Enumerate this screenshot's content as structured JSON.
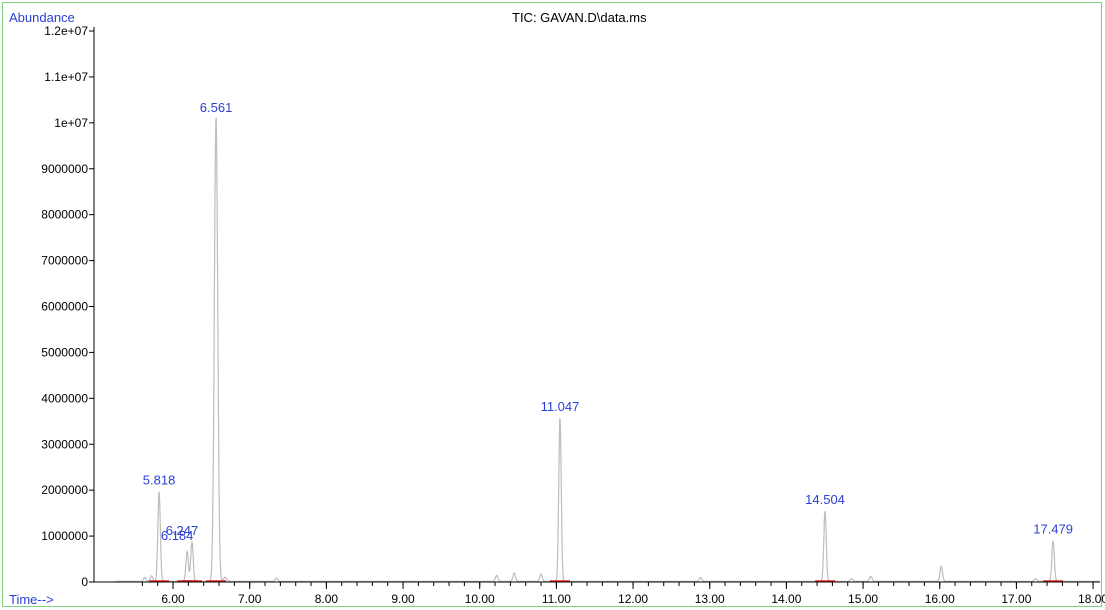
{
  "chart_data": {
    "type": "line",
    "title": "TIC: GAVAN.D\\data.ms",
    "ylabel": "Abundance",
    "xlabel": "Time-->",
    "xlim": [
      5.25,
      18.2
    ],
    "ylim": [
      0,
      12000000
    ],
    "y_ticks": [
      {
        "value": 0,
        "label": "0"
      },
      {
        "value": 1000000,
        "label": "1000000"
      },
      {
        "value": 2000000,
        "label": "2000000"
      },
      {
        "value": 3000000,
        "label": "3000000"
      },
      {
        "value": 4000000,
        "label": "4000000"
      },
      {
        "value": 5000000,
        "label": "5000000"
      },
      {
        "value": 6000000,
        "label": "6000000"
      },
      {
        "value": 7000000,
        "label": "7000000"
      },
      {
        "value": 8000000,
        "label": "8000000"
      },
      {
        "value": 9000000,
        "label": "9000000"
      },
      {
        "value": 10000000,
        "label": "1e+07"
      },
      {
        "value": 11000000,
        "label": "1.1e+07"
      },
      {
        "value": 12000000,
        "label": "1.2e+07"
      }
    ],
    "x_ticks": [
      {
        "value": 6,
        "label": "6.00"
      },
      {
        "value": 7,
        "label": "7.00"
      },
      {
        "value": 8,
        "label": "8.00"
      },
      {
        "value": 9,
        "label": "9.00"
      },
      {
        "value": 10,
        "label": "10.00"
      },
      {
        "value": 11,
        "label": "11.00"
      },
      {
        "value": 12,
        "label": "12.00"
      },
      {
        "value": 13,
        "label": "13.00"
      },
      {
        "value": 14,
        "label": "14.00"
      },
      {
        "value": 15,
        "label": "15.00"
      },
      {
        "value": 16,
        "label": "16.00"
      },
      {
        "value": 17,
        "label": "17.00"
      },
      {
        "value": 18,
        "label": "18.00"
      }
    ],
    "labeled_peaks": [
      {
        "x": 5.818,
        "y": 1950000,
        "label": "5.818"
      },
      {
        "x": 6.184,
        "y": 650000,
        "label": "6.184"
      },
      {
        "x": 6.247,
        "y": 850000,
        "label": "6.247"
      },
      {
        "x": 6.561,
        "y": 10100000,
        "label": "6.561"
      },
      {
        "x": 11.047,
        "y": 3550000,
        "label": "11.047"
      },
      {
        "x": 14.504,
        "y": 1520000,
        "label": "14.504"
      },
      {
        "x": 17.479,
        "y": 880000,
        "label": "17.479"
      }
    ],
    "minor_peaks": [
      {
        "x": 5.63,
        "y": 80000
      },
      {
        "x": 5.72,
        "y": 120000
      },
      {
        "x": 6.68,
        "y": 90000
      },
      {
        "x": 7.35,
        "y": 70000
      },
      {
        "x": 10.22,
        "y": 130000
      },
      {
        "x": 10.45,
        "y": 180000
      },
      {
        "x": 10.8,
        "y": 160000
      },
      {
        "x": 12.88,
        "y": 80000
      },
      {
        "x": 14.85,
        "y": 60000
      },
      {
        "x": 15.1,
        "y": 110000
      },
      {
        "x": 16.02,
        "y": 330000
      },
      {
        "x": 17.25,
        "y": 60000
      }
    ],
    "grid": false,
    "colors": {
      "trace": "#bdbdbd",
      "axis": "#000000",
      "peak_label": "#2b3fd6",
      "frame": "#7fd17f",
      "baseline_marker": "#e02020"
    }
  }
}
